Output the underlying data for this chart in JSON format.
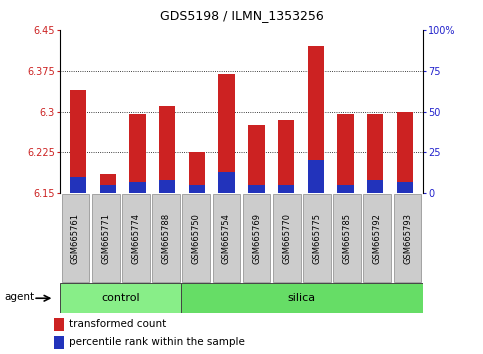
{
  "title": "GDS5198 / ILMN_1353256",
  "samples": [
    "GSM665761",
    "GSM665771",
    "GSM665774",
    "GSM665788",
    "GSM665750",
    "GSM665754",
    "GSM665769",
    "GSM665770",
    "GSM665775",
    "GSM665785",
    "GSM665792",
    "GSM665793"
  ],
  "groups": [
    "control",
    "control",
    "control",
    "control",
    "silica",
    "silica",
    "silica",
    "silica",
    "silica",
    "silica",
    "silica",
    "silica"
  ],
  "transformed_count": [
    6.34,
    6.185,
    6.295,
    6.31,
    6.225,
    6.37,
    6.275,
    6.285,
    6.42,
    6.295,
    6.295,
    6.3
  ],
  "percentile_rank": [
    10,
    5,
    7,
    8,
    5,
    13,
    5,
    5,
    20,
    5,
    8,
    7
  ],
  "ylim_left": [
    6.15,
    6.45
  ],
  "ylim_right": [
    0,
    100
  ],
  "yticks_left": [
    6.15,
    6.225,
    6.3,
    6.375,
    6.45
  ],
  "yticks_right": [
    0,
    25,
    50,
    75,
    100
  ],
  "ytick_labels_left": [
    "6.15",
    "6.225",
    "6.3",
    "6.375",
    "6.45"
  ],
  "ytick_labels_right": [
    "0",
    "25",
    "50",
    "75",
    "100%"
  ],
  "grid_values": [
    6.225,
    6.3,
    6.375
  ],
  "bar_color_red": "#cc2222",
  "bar_color_blue": "#2233bb",
  "bar_width": 0.55,
  "baseline": 6.15,
  "control_color": "#88ee88",
  "silica_color": "#66dd66",
  "group_labels": [
    "control",
    "silica"
  ],
  "legend_red": "transformed count",
  "legend_blue": "percentile rank within the sample",
  "left_tick_color": "#cc2222",
  "right_tick_color": "#2222cc",
  "xtick_bg": "#cccccc"
}
